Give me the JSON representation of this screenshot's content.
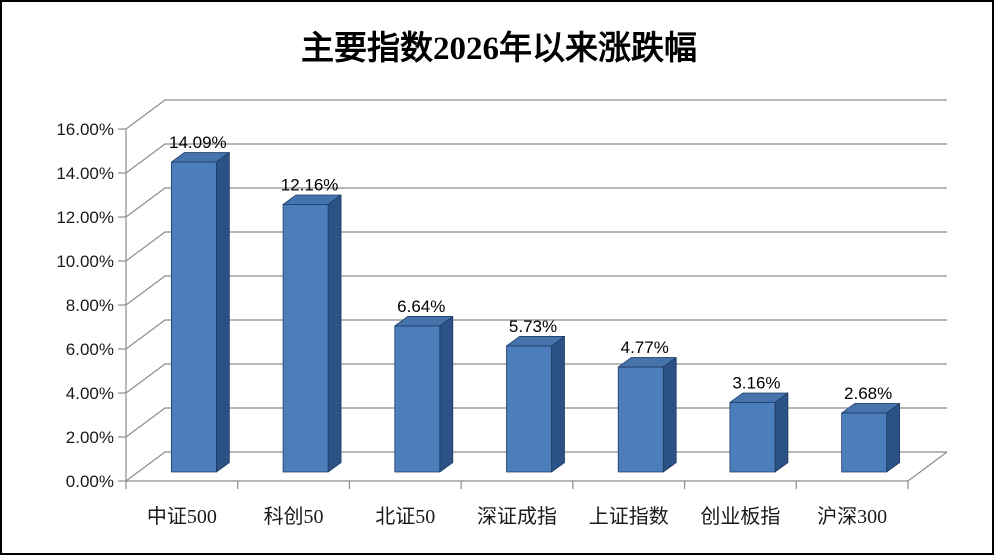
{
  "window": {
    "background": "#ffffff",
    "border_color": "#000000"
  },
  "chart_data": {
    "type": "bar",
    "style": "3d-column",
    "title": "主要指数2026年以来涨跌幅",
    "categories": [
      "中证500",
      "科创50",
      "北证50",
      "深证成指",
      "上证指数",
      "创业板指",
      "沪深300"
    ],
    "values": [
      14.09,
      12.16,
      6.64,
      5.73,
      4.77,
      3.16,
      2.68
    ],
    "value_labels": [
      "14.09%",
      "12.16%",
      "6.64%",
      "5.73%",
      "4.77%",
      "3.16%",
      "2.68%"
    ],
    "xlabel": "",
    "ylabel": "",
    "ylim": [
      0,
      16
    ],
    "ytick_step": 2,
    "ytick_labels": [
      "0.00%",
      "2.00%",
      "4.00%",
      "6.00%",
      "8.00%",
      "10.00%",
      "12.00%",
      "14.00%",
      "16.00%"
    ],
    "grid": true,
    "legend": false,
    "colors": {
      "bar_front": "#4C7EBB",
      "bar_top": "#4573AC",
      "bar_side": "#2C5184",
      "bar_outline": "#1E3C66",
      "gridline": "#8C8C8C",
      "axis": "#8C8C8C",
      "text": "#000000"
    }
  }
}
